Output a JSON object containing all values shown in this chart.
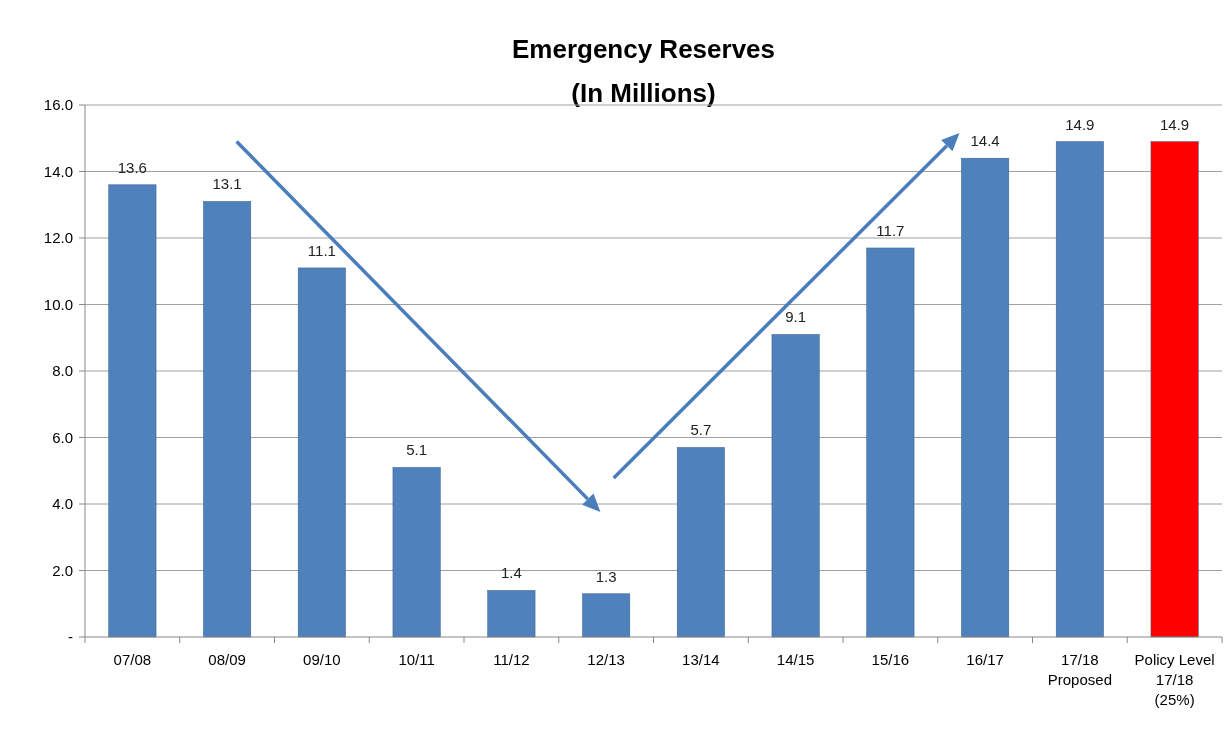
{
  "chart_data": {
    "type": "bar",
    "title": "Emergency Reserves",
    "subtitle": "(In Millions)",
    "categories": [
      "07/08",
      "08/09",
      "09/10",
      "10/11",
      "11/12",
      "12/13",
      "13/14",
      "14/15",
      "15/16",
      "16/17",
      "17/18\nProposed",
      "Policy Level\n17/18\n(25%)"
    ],
    "values": [
      13.6,
      13.1,
      11.1,
      5.1,
      1.4,
      1.3,
      5.7,
      9.1,
      11.7,
      14.4,
      14.9,
      14.9
    ],
    "colors": [
      "#4f81bd",
      "#4f81bd",
      "#4f81bd",
      "#4f81bd",
      "#4f81bd",
      "#4f81bd",
      "#4f81bd",
      "#4f81bd",
      "#4f81bd",
      "#4f81bd",
      "#4f81bd",
      "#ff0000"
    ],
    "ylim": [
      0,
      16
    ],
    "yticks": [
      {
        "value": 0,
        "label": "-"
      },
      {
        "value": 2,
        "label": "2.0"
      },
      {
        "value": 4,
        "label": "4.0"
      },
      {
        "value": 6,
        "label": "6.0"
      },
      {
        "value": 8,
        "label": "8.0"
      },
      {
        "value": 10,
        "label": "10.0"
      },
      {
        "value": 12,
        "label": "12.0"
      },
      {
        "value": 14,
        "label": "14.0"
      },
      {
        "value": 16,
        "label": "16.0"
      }
    ],
    "grid": "y",
    "data_labels": true
  }
}
